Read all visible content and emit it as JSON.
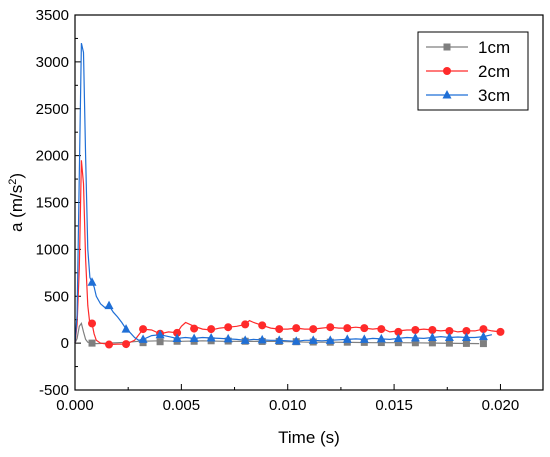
{
  "chart_data": {
    "type": "line",
    "xlabel": "Time (s)",
    "ylabel_main": "a (m/s",
    "ylabel_sup": "2",
    "ylabel_close": ")",
    "xlim": [
      0.0,
      0.022
    ],
    "ylim": [
      -500,
      3500
    ],
    "xticks": [
      0.0,
      0.005,
      0.01,
      0.015,
      0.02
    ],
    "xtick_labels": [
      "0.000",
      "0.005",
      "0.010",
      "0.015",
      "0.020"
    ],
    "yticks": [
      -500,
      0,
      500,
      1000,
      1500,
      2000,
      2500,
      3000,
      3500
    ],
    "ytick_labels": [
      "-500",
      "0",
      "500",
      "1000",
      "1500",
      "2000",
      "2500",
      "3000",
      "3500"
    ],
    "legend_position": "top-right",
    "series": [
      {
        "name": "1cm",
        "color": "#7f7f7f",
        "marker": "square",
        "x": [
          0.0,
          0.0001,
          0.0002,
          0.0003,
          0.0004,
          0.0005,
          0.0006,
          0.0008,
          0.001,
          0.0015,
          0.002,
          0.0025,
          0.003,
          0.004,
          0.005,
          0.006,
          0.007,
          0.008,
          0.009,
          0.01,
          0.011,
          0.012,
          0.013,
          0.014,
          0.015,
          0.016,
          0.017,
          0.018,
          0.019
        ],
        "y": [
          0,
          50,
          180,
          210,
          120,
          40,
          10,
          0,
          -5,
          0,
          5,
          10,
          20,
          25,
          20,
          25,
          20,
          18,
          20,
          15,
          10,
          10,
          8,
          5,
          5,
          3,
          0,
          -3,
          -5
        ],
        "marker_x": [
          0.0008,
          0.0032,
          0.004,
          0.0048,
          0.0056,
          0.0064,
          0.0072,
          0.008,
          0.0088,
          0.0096,
          0.0104,
          0.0112,
          0.012,
          0.0128,
          0.0136,
          0.0144,
          0.0152,
          0.016,
          0.0168,
          0.0176,
          0.0184,
          0.0192
        ],
        "marker_y": [
          0,
          5,
          15,
          20,
          20,
          25,
          22,
          20,
          18,
          18,
          15,
          12,
          10,
          10,
          8,
          6,
          5,
          4,
          3,
          0,
          -3,
          -5
        ]
      },
      {
        "name": "2cm",
        "color": "#ff2a2a",
        "marker": "circle",
        "x": [
          0.0,
          0.0001,
          0.0002,
          0.0003,
          0.0004,
          0.0005,
          0.0006,
          0.0007,
          0.0008,
          0.0009,
          0.001,
          0.0012,
          0.0016,
          0.002,
          0.0024,
          0.0028,
          0.0032,
          0.0036,
          0.004,
          0.0044,
          0.0048,
          0.005,
          0.0052,
          0.0056,
          0.006,
          0.0064,
          0.0068,
          0.0072,
          0.0076,
          0.008,
          0.0082,
          0.0084,
          0.0088,
          0.0092,
          0.0096,
          0.01,
          0.0104,
          0.0108,
          0.0112,
          0.0116,
          0.012,
          0.0124,
          0.0128,
          0.0132,
          0.0136,
          0.014,
          0.0144,
          0.0148,
          0.0152,
          0.0156,
          0.016,
          0.0164,
          0.0168,
          0.0172,
          0.0176,
          0.018,
          0.0184,
          0.0188,
          0.0192,
          0.0196,
          0.02
        ],
        "y": [
          0,
          200,
          800,
          1950,
          1700,
          900,
          400,
          200,
          210,
          100,
          30,
          0,
          -15,
          -10,
          -10,
          30,
          150,
          140,
          100,
          120,
          110,
          180,
          220,
          180,
          150,
          140,
          160,
          170,
          180,
          200,
          240,
          220,
          190,
          160,
          150,
          150,
          160,
          150,
          150,
          160,
          170,
          160,
          160,
          170,
          160,
          150,
          160,
          120,
          130,
          140,
          140,
          150,
          140,
          130,
          140,
          120,
          130,
          130,
          150,
          130,
          120
        ],
        "marker_x": [
          0.0008,
          0.0016,
          0.0024,
          0.0032,
          0.004,
          0.0048,
          0.0056,
          0.0064,
          0.0072,
          0.008,
          0.0088,
          0.0096,
          0.0104,
          0.0112,
          0.012,
          0.0128,
          0.0136,
          0.0144,
          0.0152,
          0.016,
          0.0168,
          0.0176,
          0.0184,
          0.0192,
          0.02
        ],
        "marker_y": [
          210,
          -15,
          -10,
          150,
          100,
          110,
          155,
          150,
          170,
          200,
          190,
          150,
          160,
          150,
          170,
          160,
          160,
          150,
          120,
          140,
          140,
          130,
          130,
          150,
          120
        ]
      },
      {
        "name": "3cm",
        "color": "#1f6fd6",
        "marker": "triangle",
        "x": [
          0.0,
          0.0001,
          0.0002,
          0.0003,
          0.0004,
          0.0005,
          0.0006,
          0.0007,
          0.0008,
          0.0009,
          0.001,
          0.0012,
          0.0014,
          0.0016,
          0.0018,
          0.002,
          0.0022,
          0.0024,
          0.0026,
          0.0028,
          0.003,
          0.0032,
          0.0036,
          0.004,
          0.0044,
          0.0048,
          0.0052,
          0.0056,
          0.006,
          0.0064,
          0.0068,
          0.0072,
          0.0076,
          0.008,
          0.0084,
          0.0088,
          0.0092,
          0.0096,
          0.01,
          0.0104,
          0.0108,
          0.0112,
          0.0116,
          0.012,
          0.0124,
          0.0128,
          0.0132,
          0.0136,
          0.014,
          0.0144,
          0.0148,
          0.0152,
          0.0156,
          0.016,
          0.0164,
          0.0168,
          0.0172,
          0.0176,
          0.018,
          0.0184,
          0.0188,
          0.0192,
          0.0196
        ],
        "y": [
          0,
          300,
          1800,
          3200,
          3100,
          2000,
          1000,
          700,
          650,
          600,
          500,
          420,
          380,
          400,
          330,
          280,
          220,
          150,
          110,
          60,
          30,
          40,
          80,
          90,
          70,
          50,
          60,
          50,
          60,
          55,
          50,
          45,
          40,
          30,
          40,
          35,
          30,
          30,
          25,
          20,
          30,
          30,
          25,
          30,
          35,
          40,
          45,
          40,
          50,
          45,
          40,
          50,
          60,
          55,
          50,
          60,
          70,
          60,
          65,
          60,
          60,
          70,
          90
        ],
        "marker_x": [
          0.0008,
          0.0016,
          0.0024,
          0.0032,
          0.004,
          0.0048,
          0.0056,
          0.0064,
          0.0072,
          0.008,
          0.0088,
          0.0096,
          0.0104,
          0.0112,
          0.012,
          0.0128,
          0.0136,
          0.0144,
          0.0152,
          0.016,
          0.0168,
          0.0176,
          0.0184,
          0.0192
        ],
        "marker_y": [
          650,
          400,
          150,
          40,
          90,
          50,
          50,
          55,
          45,
          30,
          35,
          30,
          20,
          30,
          30,
          40,
          40,
          45,
          50,
          55,
          60,
          60,
          60,
          70
        ]
      }
    ]
  }
}
